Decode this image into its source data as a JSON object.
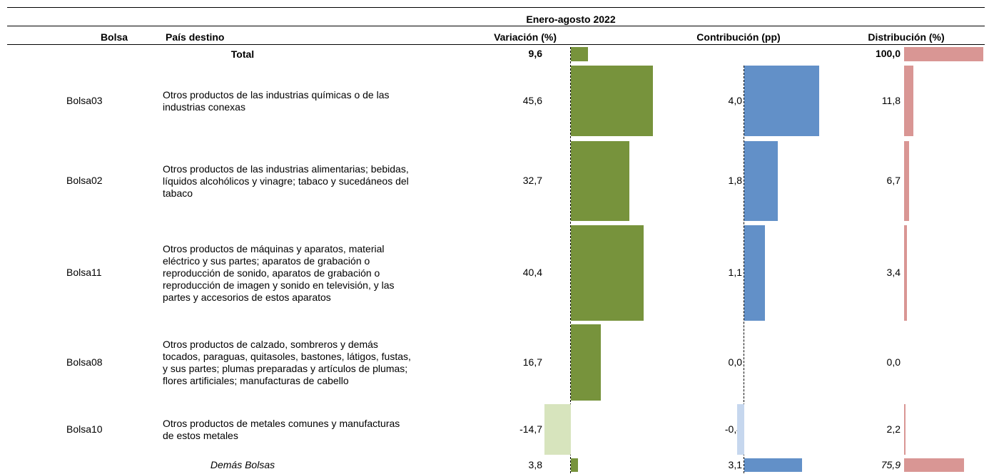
{
  "table": {
    "period": "Enero-agosto 2022",
    "headers": [
      "Bolsa",
      "País destino",
      "Variación (%)",
      "Contribución (pp)",
      "Distribución (%)"
    ],
    "colors": {
      "variacion": "#77933c",
      "variacion_negative": "#d7e4bd",
      "contribucion": "#6290c8",
      "contribucion_negative": "#c6d7ee",
      "distribucion": "#d99694"
    },
    "rows": [
      {
        "destino": "Total",
        "variacion": {
          "value": 9.6,
          "label": "9,6"
        },
        "distribucion": {
          "value": 100.0,
          "label": "100,0"
        }
      },
      {
        "bolsa": "Bolsa03",
        "destino": "Otros productos de las industrias químicas o de las industrias conexas",
        "variacion": {
          "value": 45.6,
          "label": "45,6"
        },
        "contribucion": {
          "value": 4.0,
          "label": "4,0"
        },
        "distribucion": {
          "value": 11.8,
          "label": "11,8"
        }
      },
      {
        "bolsa": "Bolsa02",
        "destino": "Otros productos de las industrias alimentarias; bebidas, líquidos alcohólicos y vinagre; tabaco y sucedáneos del tabaco",
        "variacion": {
          "value": 32.7,
          "label": "32,7"
        },
        "contribucion": {
          "value": 1.8,
          "label": "1,8"
        },
        "distribucion": {
          "value": 6.7,
          "label": "6,7"
        }
      },
      {
        "bolsa": "Bolsa11",
        "destino": "Otros productos de máquinas y aparatos, material eléctrico y sus partes; aparatos de grabación o reproducción de sonido, aparatos de grabación o reproducción de imagen y sonido en televisión, y las partes y accesorios de estos aparatos",
        "variacion": {
          "value": 40.4,
          "label": "40,4"
        },
        "contribucion": {
          "value": 1.1,
          "label": "1,1"
        },
        "distribucion": {
          "value": 3.4,
          "label": "3,4"
        }
      },
      {
        "bolsa": "Bolsa08",
        "destino": "Otros productos de calzado, sombreros y demás tocados, paraguas, quitasoles, bastones, látigos, fustas, y sus partes; plumas preparadas y artículos de plumas; flores artificiales; manufacturas de cabello",
        "variacion": {
          "value": 16.7,
          "label": "16,7"
        },
        "contribucion": {
          "value": 0.0,
          "label": "0,0"
        },
        "distribucion": {
          "value": 0.0,
          "label": "0,0"
        }
      },
      {
        "bolsa": "Bolsa10",
        "destino": "Otros productos de metales comunes y manufacturas de estos metales",
        "variacion": {
          "value": -14.7,
          "label": "-14,7"
        },
        "contribucion": {
          "value": -0.4,
          "label": "-0,4"
        },
        "distribucion": {
          "value": 2.2,
          "label": "2,2"
        }
      },
      {
        "destino": "Demás Bolsas",
        "variacion": {
          "value": 3.8,
          "label": "3,8"
        },
        "contribucion": {
          "value": 3.1,
          "label": "3,1"
        },
        "distribucion": {
          "value": 75.9,
          "label": "75,9"
        }
      }
    ]
  }
}
